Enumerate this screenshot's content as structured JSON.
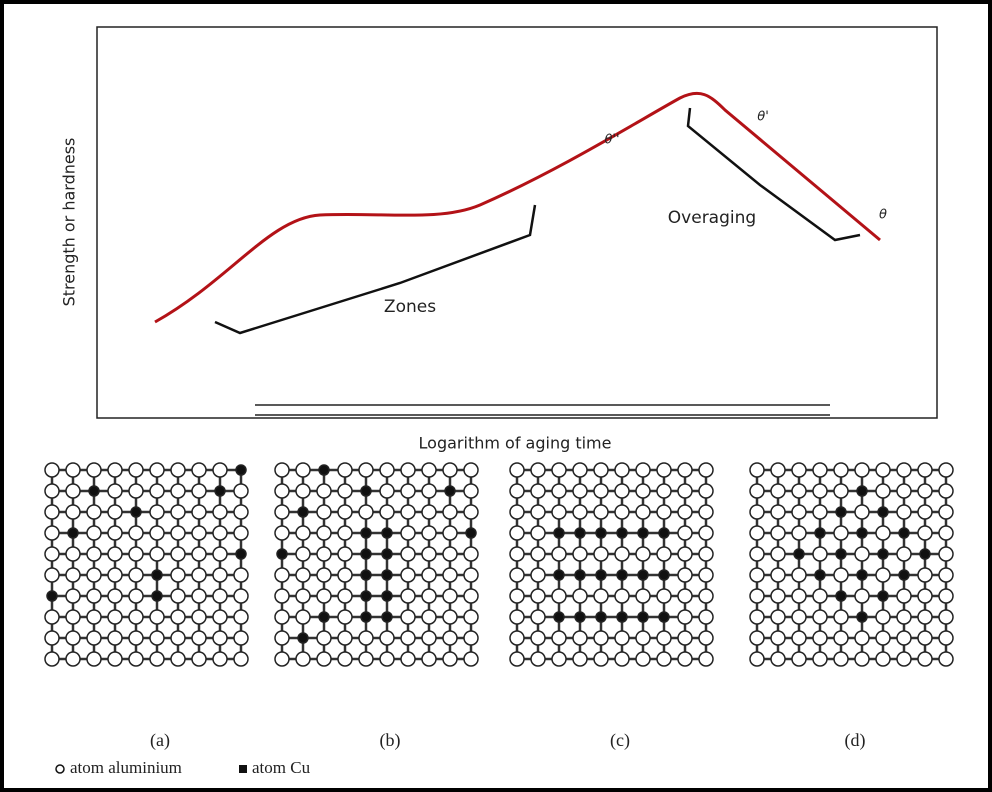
{
  "figure": {
    "y_axis_label": "Strength or hardness",
    "x_axis_label": "Logarithm of aging time",
    "phase_labels": [
      "θ''",
      "θ'",
      "θ"
    ],
    "region_labels": [
      "Zones",
      "Overaging"
    ],
    "panel_labels": [
      "(a)",
      "(b)",
      "(c)",
      "(d)"
    ],
    "legend": [
      "atom aluminium",
      "atom Cu"
    ]
  }
}
